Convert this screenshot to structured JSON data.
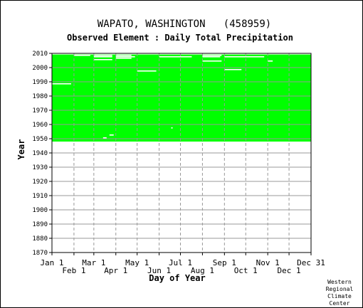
{
  "chart_data": {
    "type": "heatmap",
    "title": "WAPATO, WASHINGTON   (458959)",
    "subtitle": "Observed Element : Daily Total Precipitation",
    "xlabel": "Day of Year",
    "ylabel": "Year",
    "ylim": [
      1870,
      2010
    ],
    "xlim": [
      1,
      366
    ],
    "x_ticks_upper": [
      {
        "label": "Jan 1",
        "day": 1
      },
      {
        "label": "Mar 1",
        "day": 60
      },
      {
        "label": "May 1",
        "day": 121
      },
      {
        "label": "Jul 1",
        "day": 182
      },
      {
        "label": "Sep 1",
        "day": 244
      },
      {
        "label": "Nov 1",
        "day": 305
      },
      {
        "label": "Dec 31",
        "day": 366
      }
    ],
    "x_ticks_lower": [
      {
        "label": "Feb 1",
        "day": 32
      },
      {
        "label": "Apr 1",
        "day": 91
      },
      {
        "label": "Jun 1",
        "day": 152
      },
      {
        "label": "Aug 1",
        "day": 213
      },
      {
        "label": "Oct 1",
        "day": 274
      },
      {
        "label": "Dec 1",
        "day": 335
      }
    ],
    "y_ticks": [
      1870,
      1880,
      1890,
      1900,
      1910,
      1920,
      1930,
      1940,
      1950,
      1960,
      1970,
      1980,
      1990,
      2000,
      2010
    ],
    "grid": true,
    "data_color": "#00ff00",
    "gap_color": "#ffffff",
    "observed_block": {
      "year_start": 1948,
      "year_end": 2010,
      "day_start": 1,
      "day_end": 366
    },
    "observed_extra": [
      {
        "year_start": 1948,
        "year_end": 1949,
        "day_start": 1,
        "day_end": 60
      }
    ],
    "missing": [
      {
        "year": 2009,
        "day_start": 1,
        "day_end": 366
      },
      {
        "year": 2008,
        "day_start": 32,
        "day_end": 55
      },
      {
        "year": 2008,
        "day_start": 60,
        "day_end": 86
      },
      {
        "year": 2008,
        "day_start": 91,
        "day_end": 113
      },
      {
        "year": 2008,
        "day_start": 213,
        "day_end": 240
      },
      {
        "year": 2007,
        "day_start": 60,
        "day_end": 86
      },
      {
        "year": 2007,
        "day_start": 91,
        "day_end": 118
      },
      {
        "year": 2007,
        "day_start": 152,
        "day_end": 198
      },
      {
        "year": 2007,
        "day_start": 213,
        "day_end": 238
      },
      {
        "year": 2007,
        "day_start": 244,
        "day_end": 300
      },
      {
        "year": 2006,
        "day_start": 91,
        "day_end": 113
      },
      {
        "year": 2005,
        "day_start": 60,
        "day_end": 86
      },
      {
        "year": 2004,
        "day_start": 213,
        "day_end": 240
      },
      {
        "year": 2004,
        "day_start": 305,
        "day_end": 312
      },
      {
        "year": 1998,
        "day_start": 244,
        "day_end": 268
      },
      {
        "year": 1997,
        "day_start": 121,
        "day_end": 148
      },
      {
        "year": 1988,
        "day_start": 1,
        "day_end": 28
      },
      {
        "year": 1957,
        "day_start": 169,
        "day_end": 171
      },
      {
        "year": 1952,
        "day_start": 82,
        "day_end": 88
      },
      {
        "year": 1950,
        "day_start": 73,
        "day_end": 78
      }
    ],
    "credit": [
      "Western",
      "Regional",
      "Climate",
      "Center"
    ]
  }
}
